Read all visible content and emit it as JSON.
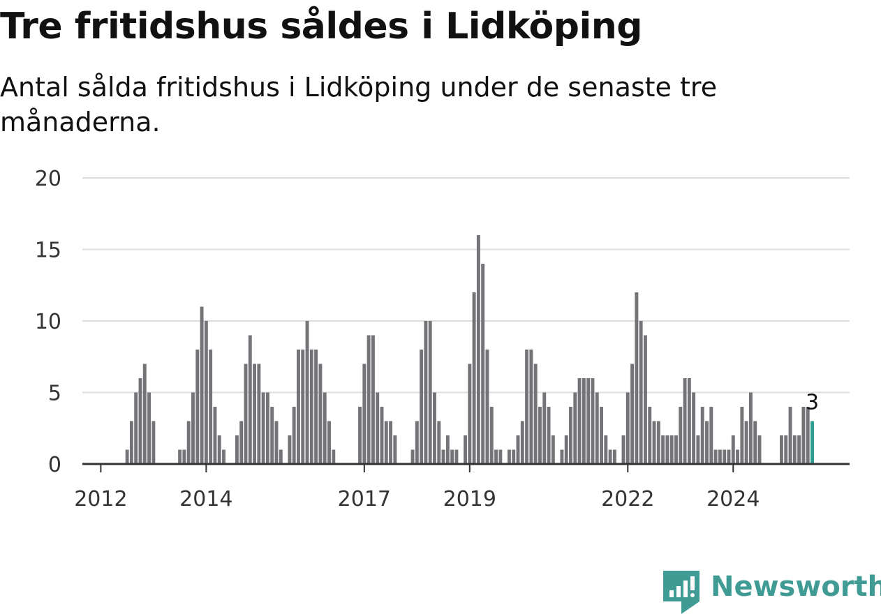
{
  "title": "Tre fritidshus såldes i Lidköping",
  "subtitle": "Antal sålda fritidshus i Lidköping under de senaste tre månaderna.",
  "brand": "Newsworthy",
  "colors": {
    "bar": "#737378",
    "highlight": "#2a9d8f",
    "grid": "#dddddd",
    "axis": "#333333",
    "brand": "#3f9b94"
  },
  "chart_data": {
    "type": "bar",
    "title": "Tre fritidshus såldes i Lidköping",
    "subtitle": "Antal sålda fritidshus i Lidköping under de senaste tre månaderna.",
    "xlabel": "",
    "ylabel": "",
    "ylim": [
      0,
      20
    ],
    "yticks": [
      0,
      5,
      10,
      15,
      20
    ],
    "xtick_labels": [
      "2012",
      "2014",
      "2017",
      "2019",
      "2022",
      "2024"
    ],
    "grid": true,
    "period": "rullande tre månader",
    "start": "2011-10",
    "end": "2025-05",
    "values": [
      0,
      0,
      0,
      0,
      0,
      0,
      0,
      0,
      0,
      1,
      3,
      5,
      6,
      7,
      5,
      3,
      0,
      0,
      0,
      0,
      0,
      1,
      1,
      3,
      5,
      8,
      11,
      10,
      8,
      4,
      2,
      1,
      0,
      0,
      2,
      3,
      7,
      9,
      7,
      7,
      5,
      5,
      4,
      3,
      1,
      0,
      2,
      4,
      8,
      8,
      10,
      8,
      8,
      7,
      5,
      3,
      1,
      0,
      0,
      0,
      0,
      0,
      4,
      7,
      9,
      9,
      5,
      4,
      3,
      3,
      2,
      0,
      0,
      0,
      1,
      3,
      8,
      10,
      10,
      5,
      3,
      1,
      2,
      1,
      1,
      0,
      2,
      7,
      12,
      16,
      14,
      8,
      4,
      1,
      1,
      0,
      1,
      1,
      2,
      3,
      8,
      8,
      7,
      4,
      5,
      4,
      2,
      0,
      1,
      2,
      4,
      5,
      6,
      6,
      6,
      6,
      5,
      4,
      2,
      1,
      1,
      0,
      2,
      5,
      7,
      12,
      10,
      9,
      4,
      3,
      3,
      2,
      2,
      2,
      2,
      4,
      6,
      6,
      5,
      2,
      4,
      3,
      4,
      1,
      1,
      1,
      1,
      2,
      1,
      4,
      3,
      5,
      3,
      2,
      0,
      0,
      0,
      0,
      2,
      2,
      4,
      2,
      2,
      4,
      4,
      3
    ],
    "highlight_last": true,
    "annotation": {
      "text": "3",
      "target": "last"
    }
  }
}
